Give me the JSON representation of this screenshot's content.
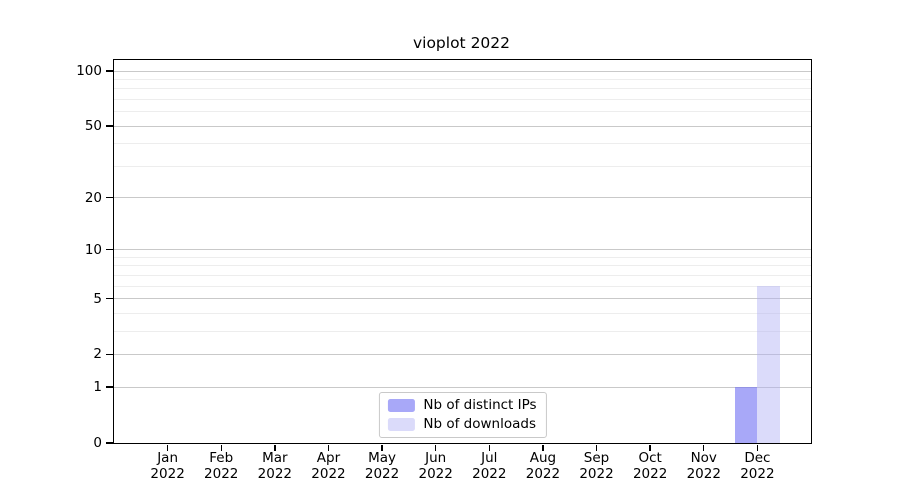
{
  "chart_data": {
    "type": "bar",
    "title": "vioplot 2022",
    "categories": [
      "Jan",
      "Feb",
      "Mar",
      "Apr",
      "May",
      "Jun",
      "Jul",
      "Aug",
      "Sep",
      "Oct",
      "Nov",
      "Dec"
    ],
    "year_label": "2022",
    "series": [
      {
        "name": "Nb of distinct IPs",
        "color": "rgba(115,115,244,0.62)",
        "values": [
          0,
          0,
          0,
          0,
          0,
          0,
          0,
          0,
          0,
          0,
          0,
          1
        ]
      },
      {
        "name": "Nb of downloads",
        "color": "rgba(175,175,244,0.45)",
        "values": [
          0,
          0,
          0,
          0,
          0,
          0,
          0,
          0,
          0,
          0,
          0,
          6
        ]
      }
    ],
    "y_scale": "log1p",
    "ylim": [
      0,
      100
    ],
    "y_ticks": [
      0,
      1,
      2,
      5,
      10,
      20,
      50,
      100
    ],
    "y_minor_gridlines": [
      3,
      4,
      6,
      7,
      8,
      9,
      30,
      40,
      60,
      70,
      80,
      90
    ],
    "grid": true,
    "legend_position": "bottom-center"
  },
  "colors": {
    "background": "#ffffff",
    "axis": "#000000",
    "text": "#000000",
    "grid_major": "#c9c9c9",
    "grid_minor": "#ededed",
    "legend_border": "#c9c9c9",
    "bar_distinct_ips_rendered": "#a8a8f8",
    "bar_downloads_rendered": "#dbdbfa"
  }
}
